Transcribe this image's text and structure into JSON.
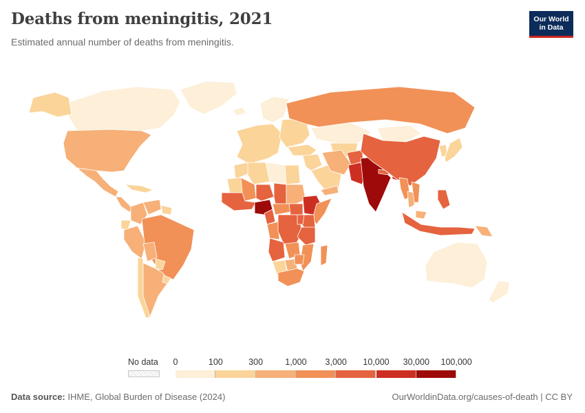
{
  "header": {
    "title": "Deaths from meningitis, 2021",
    "subtitle": "Estimated annual number of deaths from meningitis.",
    "logo_line1": "Our World",
    "logo_line2": "in Data"
  },
  "legend": {
    "no_data_label": "No data",
    "tick_labels": [
      "0",
      "100",
      "300",
      "1,000",
      "3,000",
      "10,000",
      "30,000",
      "100,000"
    ],
    "bin_colors": [
      "#fdefd8",
      "#fbd49a",
      "#f6b078",
      "#f19157",
      "#e5633f",
      "#cc2f22",
      "#9e0a0a"
    ]
  },
  "colors": {
    "ocean": "#ffffff",
    "country_border": "#ffffff",
    "no_data": "#f2f2f2"
  },
  "regions": [
    {
      "name": "Canada",
      "color": "#fdefd8"
    },
    {
      "name": "Alaska",
      "color": "#fbd49a"
    },
    {
      "name": "Greenland",
      "color": "#fdefd8"
    },
    {
      "name": "United States",
      "color": "#f6b078"
    },
    {
      "name": "Mexico",
      "color": "#f6b078"
    },
    {
      "name": "Central America",
      "color": "#f6b078"
    },
    {
      "name": "Caribbean",
      "color": "#fbd49a"
    },
    {
      "name": "Colombia",
      "color": "#f6b078"
    },
    {
      "name": "Venezuela",
      "color": "#f6b078"
    },
    {
      "name": "Guianas",
      "color": "#fbd49a"
    },
    {
      "name": "Ecuador",
      "color": "#fbd49a"
    },
    {
      "name": "Peru",
      "color": "#f6b078"
    },
    {
      "name": "Brazil",
      "color": "#f19157"
    },
    {
      "name": "Bolivia",
      "color": "#f6b078"
    },
    {
      "name": "Paraguay",
      "color": "#fbd49a"
    },
    {
      "name": "Chile",
      "color": "#fbd49a"
    },
    {
      "name": "Argentina",
      "color": "#f6b078"
    },
    {
      "name": "Uruguay",
      "color": "#fbd49a"
    },
    {
      "name": "Iceland",
      "color": "#fdefd8"
    },
    {
      "name": "Western Europe",
      "color": "#fbd49a"
    },
    {
      "name": "Scandinavia",
      "color": "#fdefd8"
    },
    {
      "name": "Eastern Europe",
      "color": "#fbd49a"
    },
    {
      "name": "Russia",
      "color": "#f19157"
    },
    {
      "name": "Kazakhstan",
      "color": "#fdefd8"
    },
    {
      "name": "Central Asia",
      "color": "#fbd49a"
    },
    {
      "name": "Turkey",
      "color": "#fbd49a"
    },
    {
      "name": "Middle East",
      "color": "#fbd49a"
    },
    {
      "name": "Saudi Arabia",
      "color": "#fbd49a"
    },
    {
      "name": "Yemen",
      "color": "#f6b078"
    },
    {
      "name": "Iran",
      "color": "#f6b078"
    },
    {
      "name": "Afghanistan",
      "color": "#e5633f"
    },
    {
      "name": "Pakistan",
      "color": "#cc2f22"
    },
    {
      "name": "India",
      "color": "#9e0a0a"
    },
    {
      "name": "Nepal",
      "color": "#e5633f"
    },
    {
      "name": "Bangladesh",
      "color": "#cc2f22"
    },
    {
      "name": "Mongolia",
      "color": "#fdefd8"
    },
    {
      "name": "China",
      "color": "#e5633f"
    },
    {
      "name": "Korea",
      "color": "#fbd49a"
    },
    {
      "name": "Japan",
      "color": "#fbd49a"
    },
    {
      "name": "Myanmar",
      "color": "#f19157"
    },
    {
      "name": "Thailand",
      "color": "#f6b078"
    },
    {
      "name": "Vietnam",
      "color": "#f19157"
    },
    {
      "name": "Philippines",
      "color": "#e5633f"
    },
    {
      "name": "Malaysia",
      "color": "#f6b078"
    },
    {
      "name": "Indonesia",
      "color": "#e5633f"
    },
    {
      "name": "Papua New Guinea",
      "color": "#f6b078"
    },
    {
      "name": "Australia",
      "color": "#fdefd8"
    },
    {
      "name": "New Zealand",
      "color": "#fdefd8"
    },
    {
      "name": "Morocco",
      "color": "#fbd49a"
    },
    {
      "name": "Algeria",
      "color": "#fbd49a"
    },
    {
      "name": "Libya",
      "color": "#fdefd8"
    },
    {
      "name": "Egypt",
      "color": "#fbd49a"
    },
    {
      "name": "Mauritania",
      "color": "#fbd49a"
    },
    {
      "name": "Mali",
      "color": "#f19157"
    },
    {
      "name": "Niger",
      "color": "#e5633f"
    },
    {
      "name": "Chad",
      "color": "#e5633f"
    },
    {
      "name": "Sudan",
      "color": "#f6b078"
    },
    {
      "name": "West Africa coast",
      "color": "#e5633f"
    },
    {
      "name": "Nigeria",
      "color": "#9e0a0a"
    },
    {
      "name": "Cameroon",
      "color": "#e5633f"
    },
    {
      "name": "Central African Republic",
      "color": "#f19157"
    },
    {
      "name": "South Sudan",
      "color": "#e5633f"
    },
    {
      "name": "Ethiopia",
      "color": "#cc2f22"
    },
    {
      "name": "Somalia",
      "color": "#f19157"
    },
    {
      "name": "Kenya",
      "color": "#e5633f"
    },
    {
      "name": "Gabon/Congo",
      "color": "#f19157"
    },
    {
      "name": "DR Congo",
      "color": "#e5633f"
    },
    {
      "name": "Uganda/Rwanda",
      "color": "#e5633f"
    },
    {
      "name": "Tanzania",
      "color": "#e5633f"
    },
    {
      "name": "Angola",
      "color": "#e5633f"
    },
    {
      "name": "Zambia",
      "color": "#f19157"
    },
    {
      "name": "Mozambique",
      "color": "#f19157"
    },
    {
      "name": "Madagascar",
      "color": "#f19157"
    },
    {
      "name": "Namibia",
      "color": "#fbd49a"
    },
    {
      "name": "Botswana",
      "color": "#f6b078"
    },
    {
      "name": "Zimbabwe",
      "color": "#f19157"
    },
    {
      "name": "South Africa",
      "color": "#f19157"
    }
  ],
  "footer": {
    "source_label": "Data source:",
    "source_text": "IHME, Global Burden of Disease (2024)",
    "url_text": "OurWorldinData.org/causes-of-death | CC BY"
  }
}
